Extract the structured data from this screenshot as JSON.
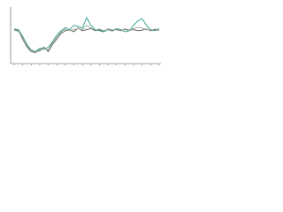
{
  "chart_data": {
    "type": "line",
    "categories": [
      null,
      null,
      null,
      null,
      null,
      null,
      null,
      null,
      null,
      null,
      null,
      null,
      null,
      null,
      null,
      null,
      null,
      null,
      null,
      null,
      null,
      null,
      null,
      null,
      null,
      null,
      null,
      null,
      null,
      null,
      null,
      null,
      null,
      null,
      null
    ],
    "ylim": [
      0,
      100
    ],
    "series": [
      {
        "color": "#555555",
        "values": [
          62,
          60,
          45,
          30,
          22,
          20,
          25,
          30,
          22,
          35,
          45,
          55,
          60,
          62,
          58,
          65,
          60,
          62,
          64,
          60,
          62,
          58,
          63,
          61,
          62,
          60,
          63,
          61,
          62,
          60,
          61,
          63,
          60,
          62,
          61
        ]
      },
      {
        "color": "#2a9d8f",
        "values": [
          63,
          62,
          50,
          35,
          25,
          22,
          28,
          26,
          30,
          40,
          52,
          60,
          66,
          62,
          70,
          68,
          65,
          84,
          70,
          62,
          60,
          58,
          62,
          60,
          64,
          62,
          58,
          60,
          70,
          78,
          82,
          70,
          62,
          60,
          64
        ]
      },
      {
        "color": "#9aa89a",
        "values": [
          61,
          59,
          48,
          32,
          24,
          21,
          23,
          28,
          25,
          38,
          48,
          58,
          63,
          60,
          62,
          64,
          62,
          70,
          65,
          61,
          63,
          60,
          62,
          59,
          63,
          61,
          62,
          60,
          64,
          66,
          65,
          62,
          61,
          63,
          62
        ]
      }
    ]
  }
}
